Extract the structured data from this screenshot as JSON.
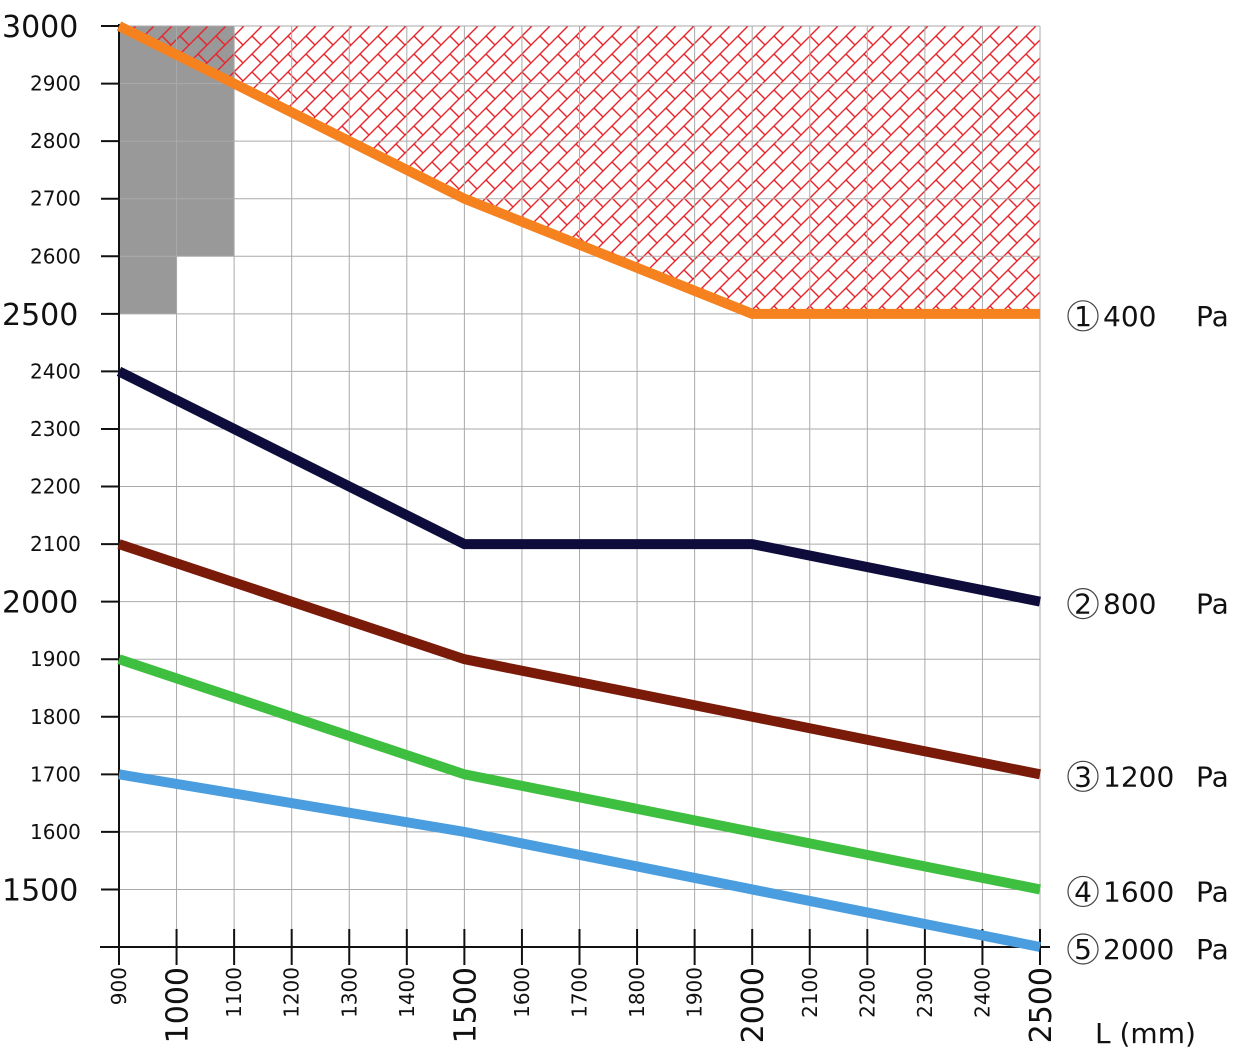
{
  "chart_data": {
    "type": "line",
    "title": "",
    "xlabel": "L (mm)",
    "ylabel": "",
    "xlim": [
      900,
      2500
    ],
    "ylim": [
      1400,
      3000
    ],
    "grid": true,
    "x_ticks": [
      900,
      1000,
      1100,
      1200,
      1300,
      1400,
      1500,
      1600,
      1700,
      1800,
      1900,
      2000,
      2100,
      2200,
      2300,
      2400,
      2500
    ],
    "x_major_ticks": [
      1000,
      1500,
      2000,
      2500
    ],
    "y_ticks": [
      1500,
      1600,
      1700,
      1800,
      1900,
      2000,
      2100,
      2200,
      2300,
      2400,
      2500,
      2600,
      2700,
      2800,
      2900,
      3000
    ],
    "y_major_ticks": [
      1500,
      2000,
      2500,
      3000
    ],
    "unit": "Pa",
    "series": [
      {
        "marker": "1",
        "pressure": "400",
        "color": "#f5821f",
        "x": [
          900,
          1100,
          1500,
          2000,
          2500
        ],
        "y": [
          3000,
          2900,
          2700,
          2500,
          2500
        ]
      },
      {
        "marker": "2",
        "pressure": "800",
        "color": "#0d0c3a",
        "x": [
          900,
          1500,
          2000,
          2500
        ],
        "y": [
          2400,
          2100,
          2100,
          2000
        ]
      },
      {
        "marker": "3",
        "pressure": "1200",
        "color": "#7a1a08",
        "x": [
          900,
          1500,
          2000,
          2500
        ],
        "y": [
          2100,
          1900,
          1800,
          1700
        ]
      },
      {
        "marker": "4",
        "pressure": "1600",
        "color": "#3fbf3f",
        "x": [
          900,
          1500,
          2000,
          2500
        ],
        "y": [
          1900,
          1700,
          1600,
          1500
        ]
      },
      {
        "marker": "5",
        "pressure": "2000",
        "color": "#4a9ee0",
        "x": [
          900,
          1500,
          2000,
          2500
        ],
        "y": [
          1700,
          1600,
          1500,
          1400
        ]
      }
    ],
    "excluded_region": {
      "color": "#999999",
      "x": [
        900,
        1100,
        1100,
        1000,
        1000,
        900
      ],
      "y": [
        3000,
        3000,
        2600,
        2600,
        2500,
        2500
      ]
    },
    "hatched_region": {
      "color": "#e8242a",
      "x": [
        900,
        2500,
        2500,
        2000,
        1500,
        1100,
        900
      ],
      "y": [
        3000,
        3000,
        2500,
        2500,
        2700,
        2900,
        3000
      ]
    }
  }
}
